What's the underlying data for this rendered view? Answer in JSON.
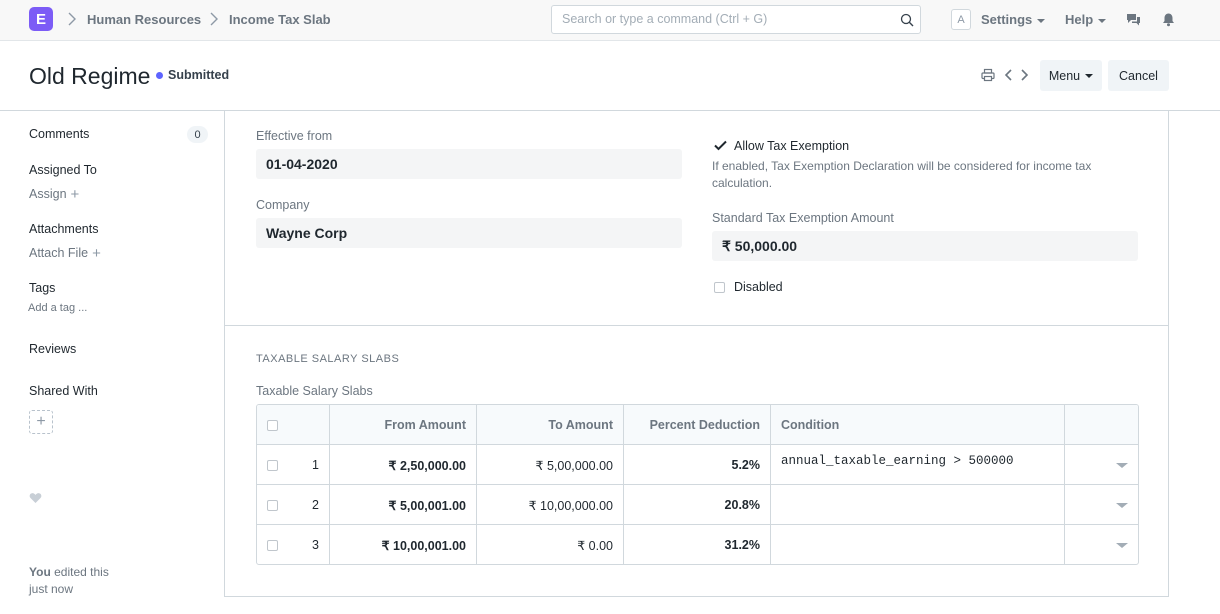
{
  "navbar": {
    "logo_letter": "E",
    "breadcrumbs": [
      "Human Resources",
      "Income Tax Slab"
    ],
    "search_placeholder": "Search or type a command (Ctrl + G)",
    "avatar_letter": "A",
    "settings_label": "Settings",
    "help_label": "Help"
  },
  "page_head": {
    "title": "Old Regime",
    "status": "Submitted",
    "menu_label": "Menu",
    "cancel_label": "Cancel"
  },
  "sidebar": {
    "comments_label": "Comments",
    "comments_count": "0",
    "assigned_to_label": "Assigned To",
    "assign_link": "Assign",
    "attachments_label": "Attachments",
    "attach_link": "Attach File",
    "tags_label": "Tags",
    "add_tag_link": "Add a tag ...",
    "reviews_label": "Reviews",
    "shared_with_label": "Shared With",
    "edited_user": "You",
    "edited_text": "edited this",
    "edited_time": "just now"
  },
  "form": {
    "effective_from_label": "Effective from",
    "effective_from_value": "01-04-2020",
    "company_label": "Company",
    "company_value": "Wayne Corp",
    "allow_tax_exemption_label": "Allow Tax Exemption",
    "allow_tax_exemption_checked": true,
    "allow_tax_exemption_desc": "If enabled, Tax Exemption Declaration will be considered for income tax calculation.",
    "std_exemption_label": "Standard Tax Exemption Amount",
    "std_exemption_value": "₹ 50,000.00",
    "disabled_label": "Disabled",
    "disabled_checked": false
  },
  "slabs_section": {
    "section_title": "TAXABLE SALARY SLABS",
    "table_label": "Taxable Salary Slabs",
    "columns": [
      "From Amount",
      "To Amount",
      "Percent Deduction",
      "Condition"
    ],
    "rows": [
      {
        "idx": "1",
        "from": "₹ 2,50,000.00",
        "to": "₹ 5,00,000.00",
        "percent": "5.2%",
        "condition": "annual_taxable_earning > 500000"
      },
      {
        "idx": "2",
        "from": "₹ 5,00,001.00",
        "to": "₹ 10,00,000.00",
        "percent": "20.8%",
        "condition": ""
      },
      {
        "idx": "3",
        "from": "₹ 10,00,001.00",
        "to": "₹ 0.00",
        "percent": "31.2%",
        "condition": ""
      }
    ]
  },
  "colors": {
    "brand": "#7c5cf6",
    "status_dot": "#5e64ff"
  }
}
